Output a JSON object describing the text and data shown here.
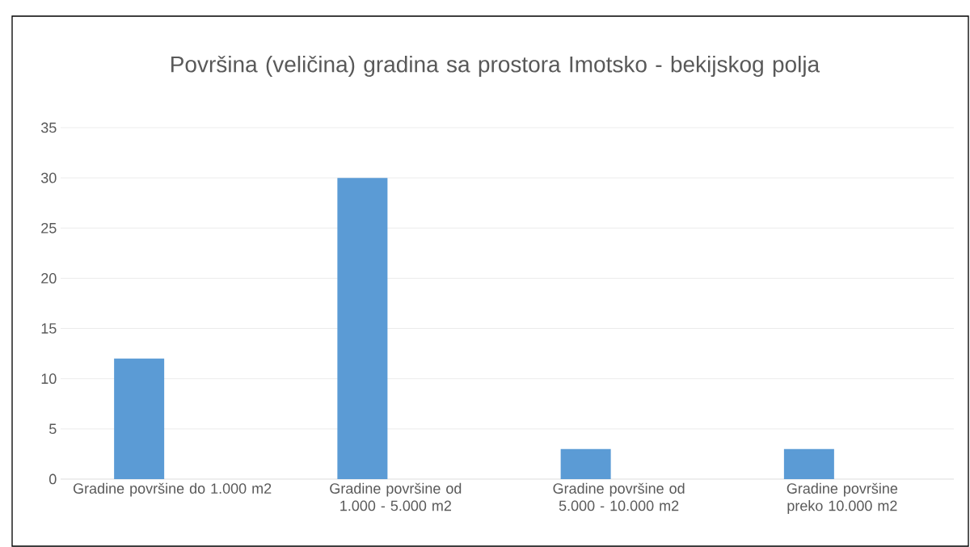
{
  "chart_data": {
    "type": "bar",
    "title": "Površina (veličina) gradina sa prostora Imotsko - bekijskog polja",
    "categories": [
      "Gradine površine do 1.000 m2",
      "Gradine površine od 1.000 - 5.000 m2",
      "Gradine površine od 5.000 - 10.000 m2",
      "Gradine površine preko 10.000 m2"
    ],
    "values": [
      12,
      30,
      3,
      3
    ],
    "color": "#5b9bd5",
    "ylim": [
      0,
      35
    ],
    "yticks": [
      0,
      5,
      10,
      15,
      20,
      25,
      30,
      35
    ],
    "grid": "y"
  }
}
